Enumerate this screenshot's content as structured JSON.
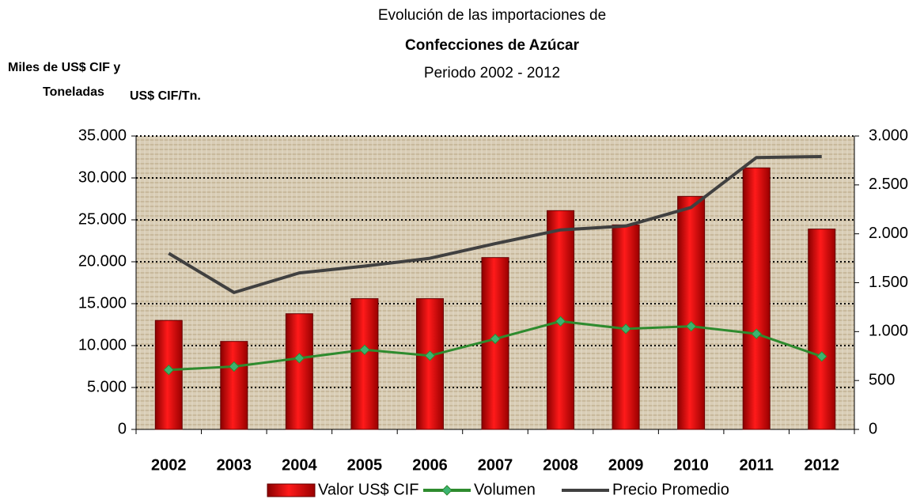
{
  "chart_data": {
    "type": "bar",
    "title": [
      "Evolución de las importaciones de",
      "Confecciones de Azúcar",
      "Periodo 2002 - 2012"
    ],
    "ylabel": [
      "Miles de US$ CIF y",
      "Toneladas"
    ],
    "y2label": "US$ CIF/Tn.",
    "categories": [
      "2002",
      "2003",
      "2004",
      "2005",
      "2006",
      "2007",
      "2008",
      "2009",
      "2010",
      "2011",
      "2012"
    ],
    "series": [
      {
        "name": "Valor US$ CIF",
        "type": "bar",
        "axis": "y",
        "color": "#e00000",
        "values": [
          13000,
          10500,
          13800,
          15600,
          15600,
          20500,
          26100,
          24400,
          27800,
          31200,
          23900
        ]
      },
      {
        "name": "Volumen",
        "type": "line",
        "axis": "y",
        "color": "#2e8b2e",
        "values": [
          7100,
          7500,
          8500,
          9500,
          8800,
          10800,
          12900,
          12000,
          12300,
          11400,
          8700
        ]
      },
      {
        "name": "Precio Promedio",
        "type": "line",
        "axis": "y2",
        "color": "#404040",
        "values": [
          1800,
          1400,
          1600,
          1670,
          1750,
          1900,
          2040,
          2080,
          2270,
          2780,
          2790
        ]
      }
    ],
    "ylim": [
      0,
      35000
    ],
    "yticks": [
      0,
      {
        "value": 5000,
        "label": "5.000"
      },
      {
        "value": 10000,
        "label": "10.000"
      },
      {
        "value": 15000,
        "label": "15.000"
      },
      {
        "value": 20000,
        "label": "20.000"
      },
      {
        "value": 25000,
        "label": "25.000"
      },
      {
        "value": 30000,
        "label": "30.000"
      },
      {
        "value": 35000,
        "label": "35.000"
      }
    ],
    "y2lim": [
      0,
      3000
    ],
    "y2ticks": [
      0,
      500,
      {
        "value": 1000,
        "label": "1.000"
      },
      {
        "value": 1500,
        "label": "1.500"
      },
      {
        "value": 2000,
        "label": "2.000"
      },
      {
        "value": 2500,
        "label": "2.500"
      },
      {
        "value": 3000,
        "label": "3.000"
      }
    ],
    "grid": true,
    "legend": "bottom"
  }
}
